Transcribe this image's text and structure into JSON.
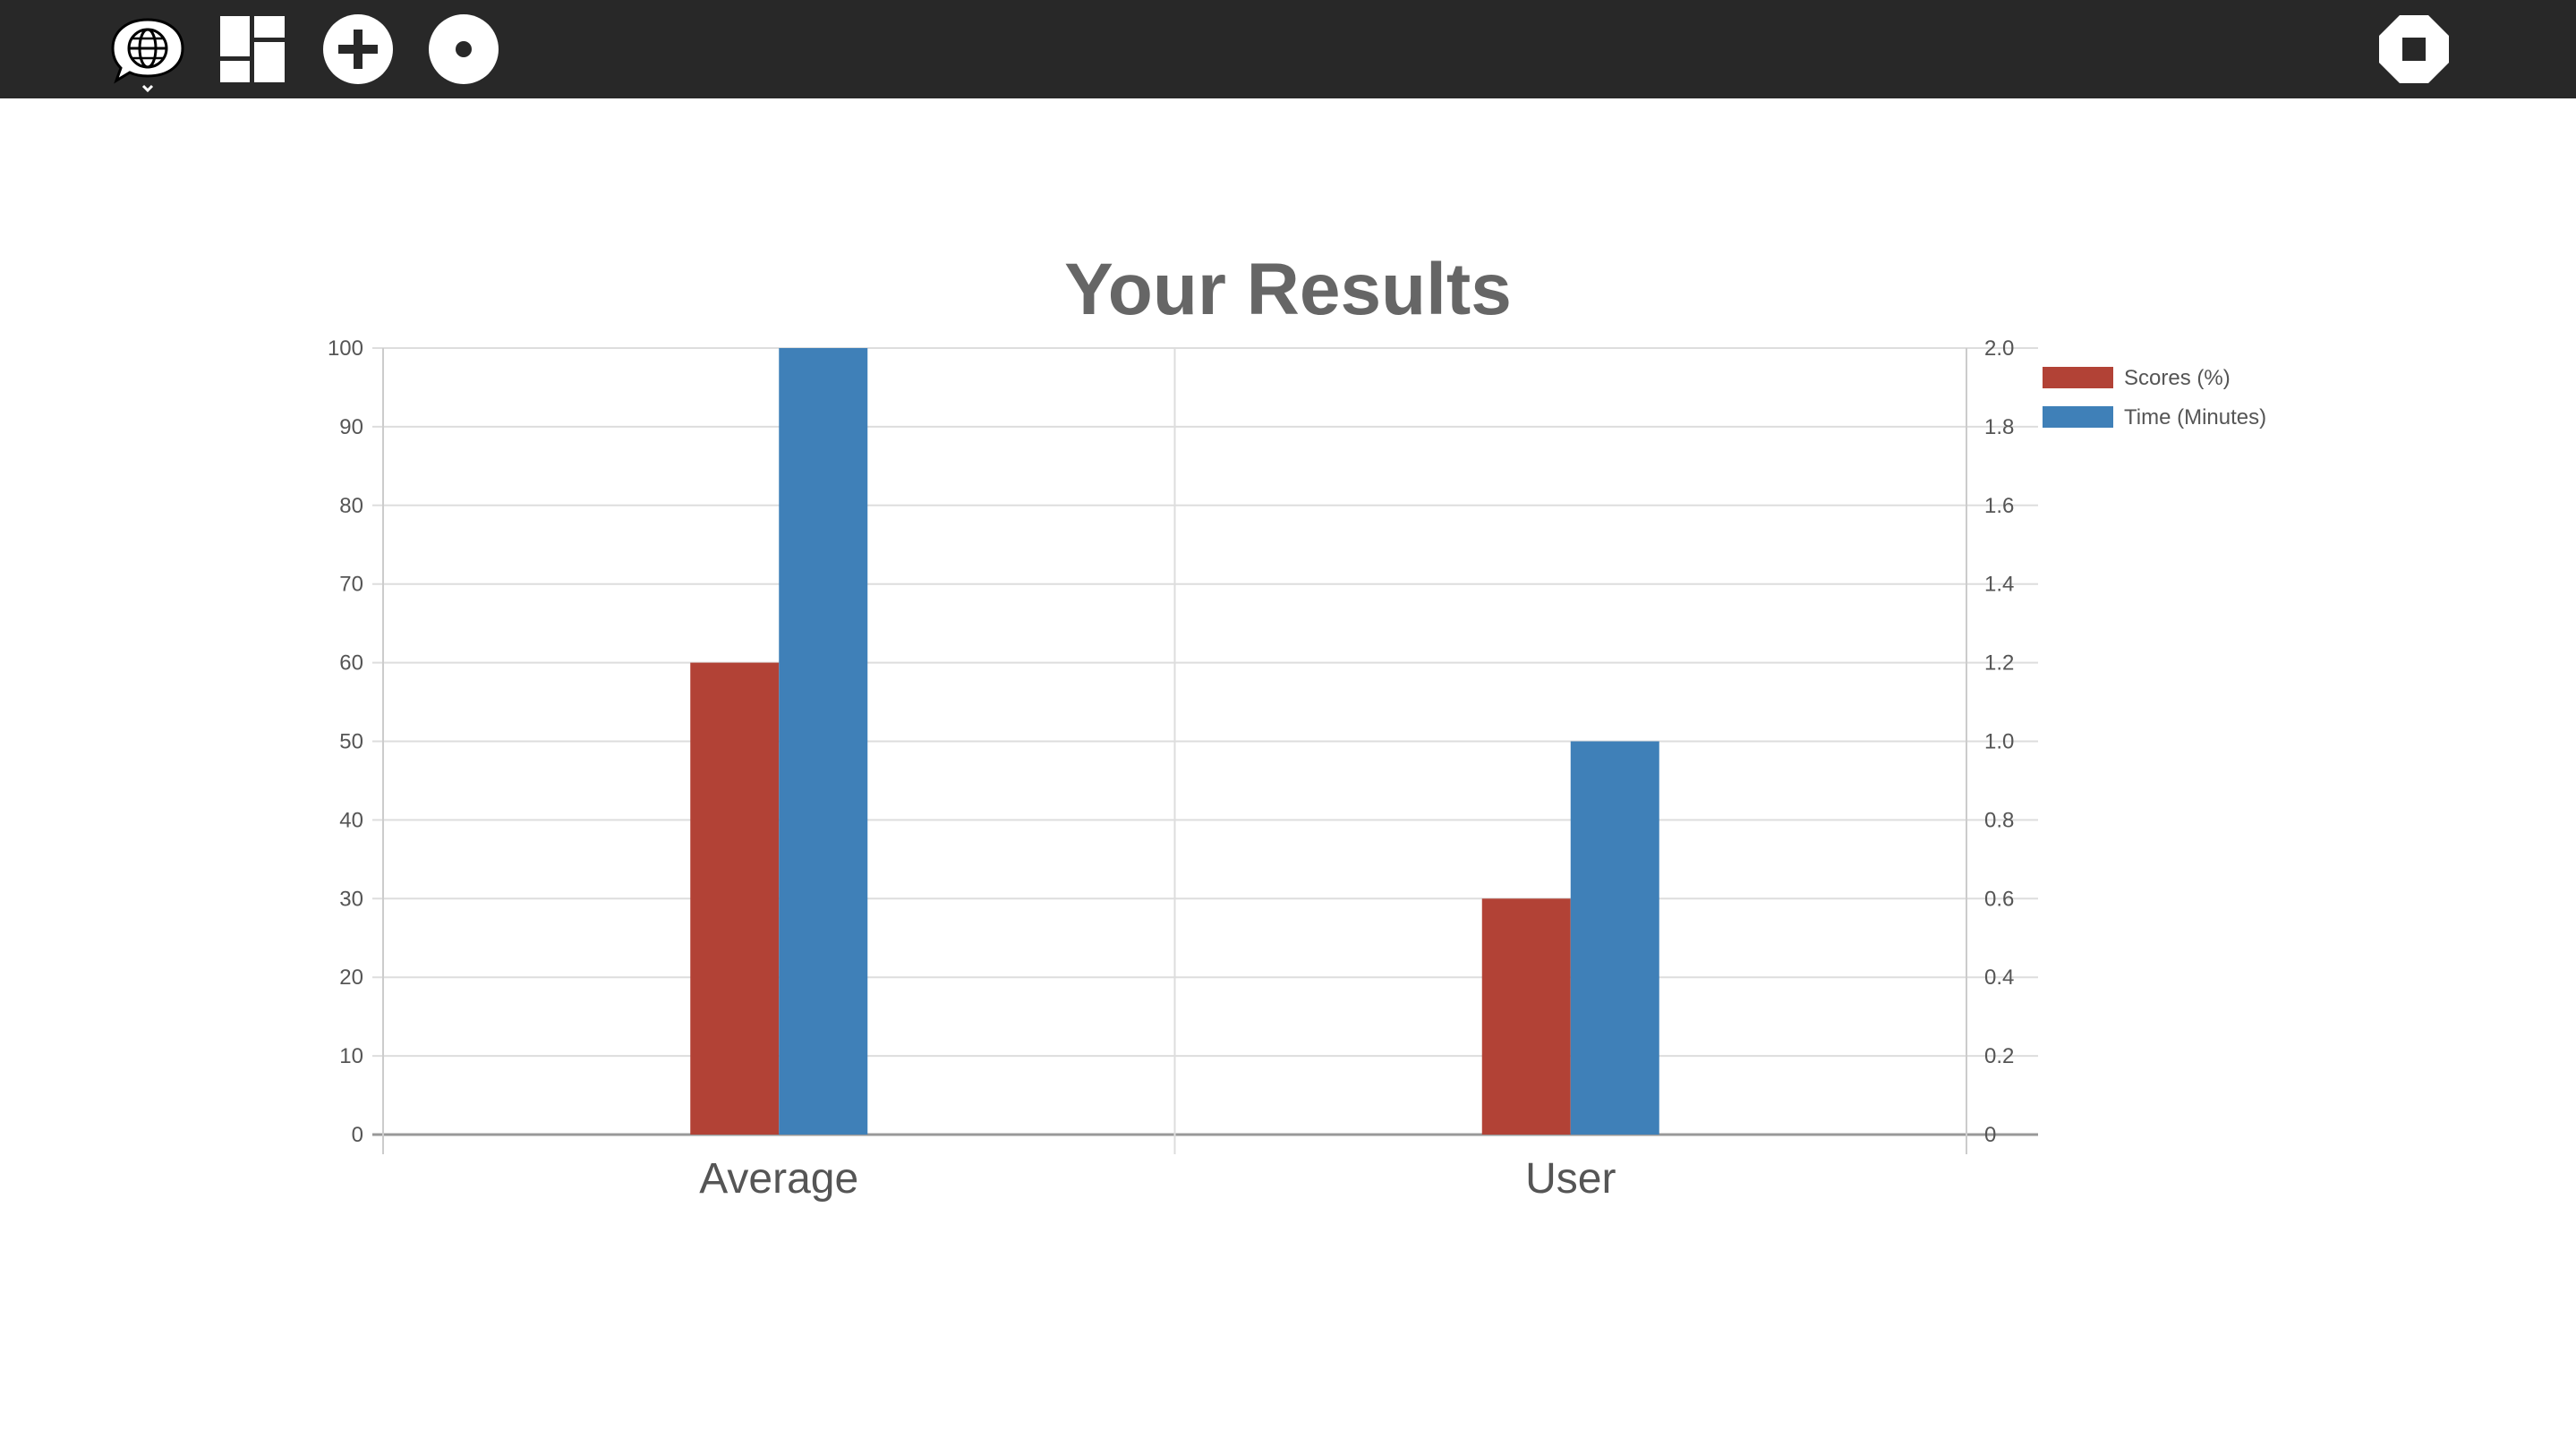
{
  "toolbar": {
    "buttons": [
      {
        "name": "activity-button",
        "icon": "speech-bubble-globe-icon"
      },
      {
        "name": "view-layout-button",
        "icon": "layout-grid-icon"
      },
      {
        "name": "add-button",
        "icon": "plus-circle-icon"
      },
      {
        "name": "record-button",
        "icon": "dot-circle-icon"
      },
      {
        "name": "stop-button",
        "icon": "stop-icon"
      }
    ]
  },
  "colors": {
    "toolbar_bg": "#282828",
    "scores": "#b24236",
    "time": "#3f80b8",
    "grid": "#dddddd",
    "axis_text": "#555555",
    "title_text": "#666666"
  },
  "chart_data": {
    "type": "bar",
    "title": "Your Results",
    "categories": [
      "Average",
      "User"
    ],
    "series": [
      {
        "name": "Scores (%)",
        "axis": "left",
        "values": [
          60,
          30
        ]
      },
      {
        "name": "Time (Minutes)",
        "axis": "right",
        "values": [
          2.0,
          1.0
        ]
      }
    ],
    "y_left": {
      "min": 0,
      "max": 100,
      "step": 10,
      "ticks": [
        "0",
        "10",
        "20",
        "30",
        "40",
        "50",
        "60",
        "70",
        "80",
        "90",
        "100"
      ]
    },
    "y_right": {
      "min": 0,
      "max": 2,
      "step": 0.2,
      "ticks": [
        "0",
        "0.2",
        "0.4",
        "0.6",
        "0.8",
        "1.0",
        "1.2",
        "1.4",
        "1.6",
        "1.8",
        "2.0"
      ]
    },
    "grid": true,
    "legend_position": "top-right"
  }
}
